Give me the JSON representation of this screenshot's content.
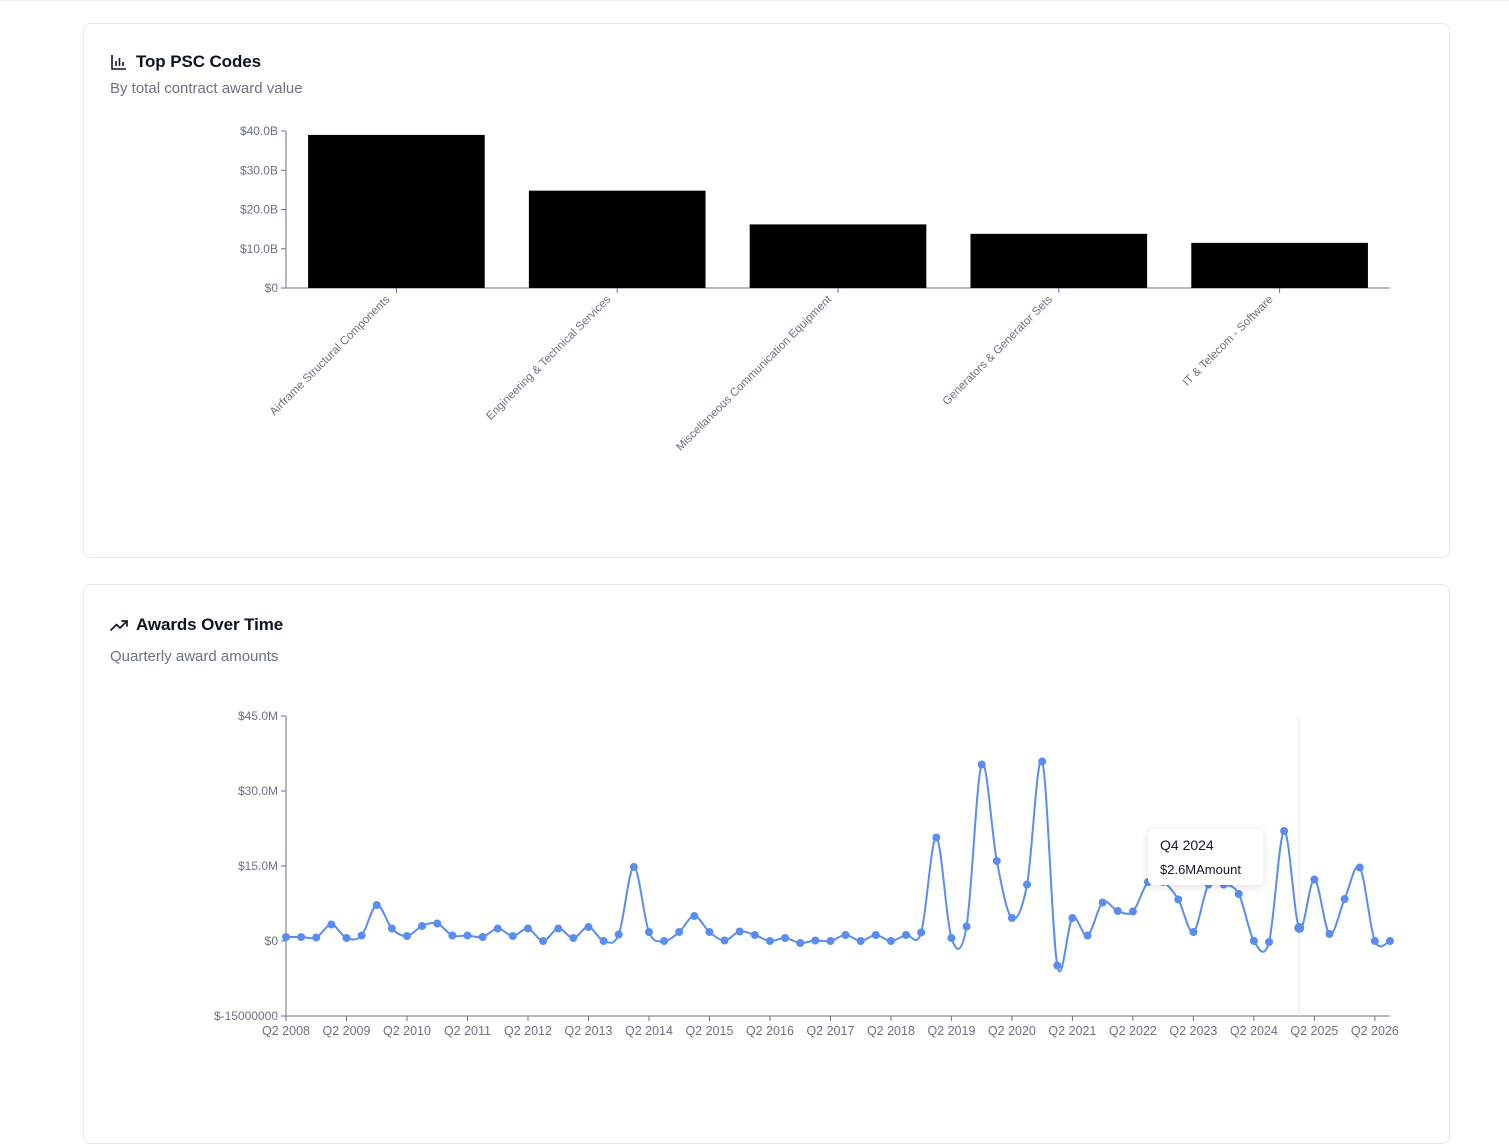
{
  "cards": {
    "psc": {
      "title": "Top PSC Codes",
      "subtitle": "By total contract award value",
      "icon": "bar-chart-icon"
    },
    "awards": {
      "title": "Awards Over Time",
      "subtitle": "Quarterly award amounts",
      "icon": "trending-up-icon"
    }
  },
  "tooltip": {
    "period": "Q4 2024",
    "value": "$2.6M",
    "label": "Amount"
  },
  "colors": {
    "bar": "#000000",
    "line": "#5b8def",
    "axis": "#6b7280",
    "tick_text": "#6b7280"
  },
  "chart_data": [
    {
      "type": "bar",
      "title": "Top PSC Codes",
      "subtitle": "By total contract award value",
      "categories": [
        "Airframe Structural Components",
        "Engineering & Technical Services",
        "Miscellaneous Communication Equipment",
        "Generators & Generator Sets",
        "IT & Telecom - Software"
      ],
      "values": [
        39000000000,
        24800000000,
        16200000000,
        13800000000,
        11500000000
      ],
      "ylim": [
        0,
        40000000000
      ],
      "yticks": [
        0,
        10000000000,
        20000000000,
        30000000000,
        40000000000
      ],
      "ytick_labels": [
        "$0",
        "$10.0B",
        "$20.0B",
        "$30.0B",
        "$40.0B"
      ],
      "grid": false,
      "xlabel": "",
      "ylabel": ""
    },
    {
      "type": "line",
      "title": "Awards Over Time",
      "subtitle": "Quarterly award amounts",
      "x_start": "Q2 2008",
      "x_end": "Q2 2026",
      "values": [
        0.8,
        0.8,
        0.7,
        3.3,
        0.6,
        1.1,
        7.2,
        2.5,
        1.0,
        3.0,
        3.5,
        1.1,
        1.1,
        0.8,
        2.5,
        1.0,
        2.5,
        0.0,
        2.5,
        0.6,
        2.8,
        0.0,
        1.3,
        14.8,
        1.8,
        0.0,
        1.8,
        5.0,
        1.8,
        0.1,
        1.9,
        1.2,
        0.0,
        0.6,
        -0.4,
        0.1,
        0.0,
        1.2,
        0.0,
        1.2,
        0.0,
        1.2,
        1.7,
        20.7,
        0.6,
        2.9,
        35.3,
        16.0,
        4.6,
        11.3,
        35.9,
        -4.9,
        4.6,
        1.1,
        7.7,
        6.0,
        5.9,
        11.8,
        11.8,
        8.3,
        1.8,
        11.3,
        11.3,
        9.4,
        0.0,
        -0.2,
        22.0,
        2.6,
        12.3,
        1.4,
        8.4,
        14.7,
        0.0,
        0.0
      ],
      "x_tick_labels": [
        "Q2 2008",
        "Q2 2009",
        "Q2 2010",
        "Q2 2011",
        "Q2 2012",
        "Q2 2013",
        "Q2 2014",
        "Q2 2015",
        "Q2 2016",
        "Q2 2017",
        "Q2 2018",
        "Q2 2019",
        "Q2 2020",
        "Q2 2021",
        "Q2 2022",
        "Q2 2023",
        "Q2 2024",
        "Q2 2025",
        "Q2 2026"
      ],
      "ylim": [
        -15,
        45
      ],
      "y_unit": "$M",
      "yticks": [
        -15,
        0,
        15,
        30,
        45
      ],
      "ytick_labels": [
        "$-15000000",
        "$0",
        "$15.0M",
        "$30.0M",
        "$45.0M"
      ],
      "highlight_index": 67,
      "grid": false,
      "xlabel": "",
      "ylabel": ""
    }
  ]
}
